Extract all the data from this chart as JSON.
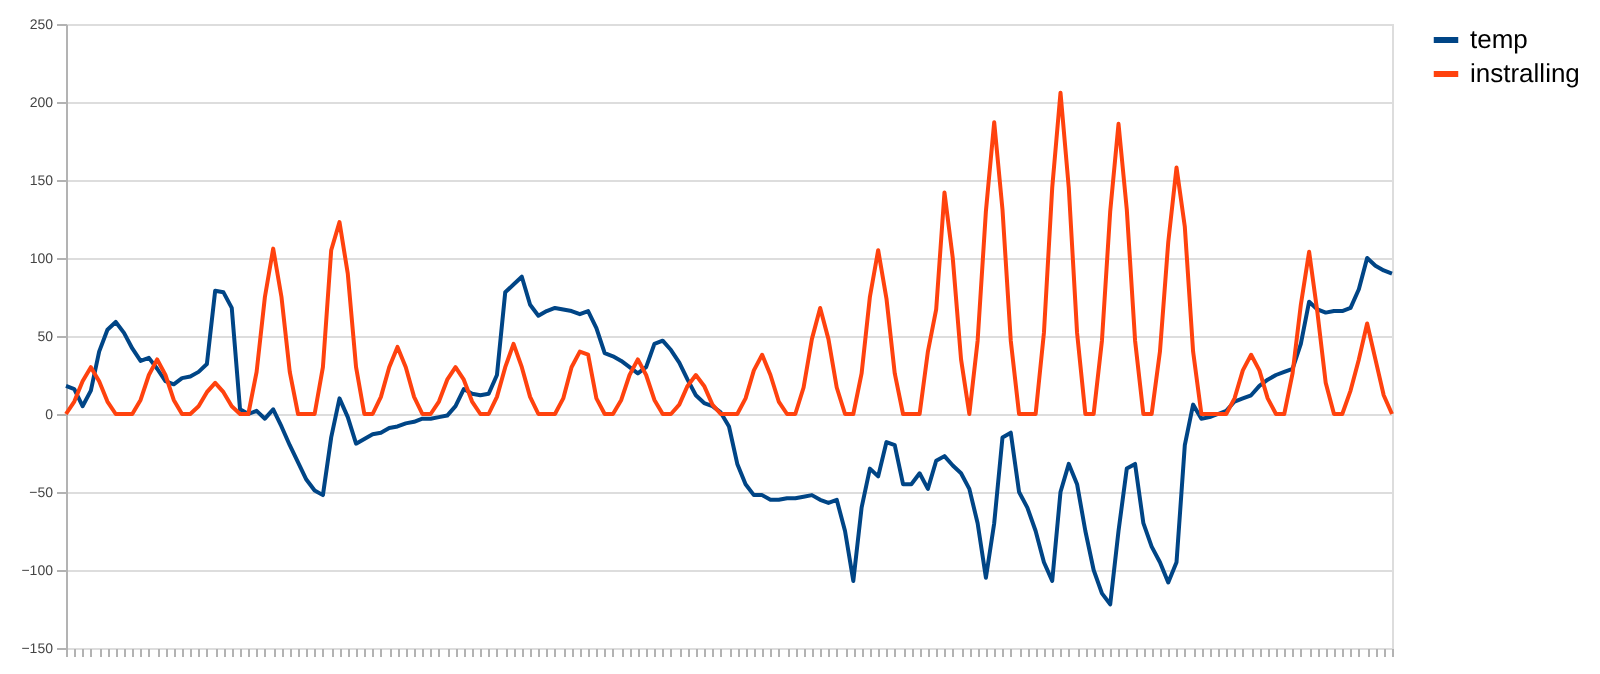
{
  "chart_data": {
    "type": "line",
    "categories": [
      null,
      null,
      null,
      null,
      null,
      null,
      null,
      null,
      null,
      null,
      null,
      null,
      null,
      null,
      null,
      null,
      null,
      null,
      null,
      null,
      null,
      null,
      null,
      null,
      null,
      null,
      null,
      null,
      null,
      null,
      null,
      null,
      null,
      null,
      null,
      null,
      null,
      null,
      null,
      null,
      null,
      null,
      null,
      null,
      null,
      null,
      null,
      null,
      null,
      null,
      null,
      null,
      null,
      null,
      null,
      null,
      null,
      null,
      null,
      null,
      null,
      null,
      null,
      null,
      null,
      null,
      null,
      null,
      null,
      null,
      null,
      null,
      null,
      null,
      null,
      null,
      null,
      null,
      null,
      null,
      null,
      null,
      null,
      null,
      null,
      null,
      null,
      null,
      null,
      null,
      null,
      null,
      null,
      null,
      null,
      null,
      null,
      null,
      null,
      null,
      null,
      null,
      null,
      null,
      null,
      null,
      null,
      null,
      null,
      null,
      null,
      null,
      null,
      null,
      null,
      null,
      null,
      null,
      null,
      null,
      null,
      null,
      null,
      null,
      null,
      null,
      null,
      null,
      null,
      null,
      null,
      null,
      null,
      null,
      null,
      null,
      null,
      null,
      null,
      null,
      null,
      null,
      null,
      null,
      null,
      null,
      null,
      null,
      null,
      null,
      null,
      null,
      null,
      null,
      null,
      null,
      null,
      null,
      null,
      null,
      null
    ],
    "series": [
      {
        "name": "temp",
        "color": "#004586",
        "values": [
          18,
          16,
          5,
          15,
          40,
          54,
          59,
          52,
          42,
          34,
          36,
          29,
          21,
          19,
          23,
          24,
          27,
          32,
          79,
          78,
          68,
          3,
          0,
          2,
          -3,
          3,
          -8,
          -20,
          -31,
          -42,
          -49,
          -52,
          -15,
          10,
          -2,
          -19,
          -16,
          -13,
          -12,
          -9,
          -8,
          -6,
          -5,
          -3,
          -3,
          -2,
          -1,
          5,
          16,
          13,
          12,
          13,
          25,
          78,
          83,
          88,
          70,
          63,
          66,
          68,
          67,
          66,
          64,
          66,
          55,
          39,
          37,
          34,
          30,
          26,
          30,
          45,
          47,
          41,
          33,
          22,
          12,
          7,
          5,
          1,
          -8,
          -32,
          -45,
          -52,
          -52,
          -55,
          -55,
          -54,
          -54,
          -53,
          -52,
          -55,
          -57,
          -55,
          -75,
          -107,
          -60,
          -35,
          -40,
          -18,
          -20,
          -45,
          -45,
          -38,
          -48,
          -30,
          -27,
          -33,
          -38,
          -48,
          -70,
          -105,
          -70,
          -15,
          -12,
          -50,
          -60,
          -75,
          -95,
          -107,
          -50,
          -32,
          -45,
          -75,
          -100,
          -115,
          -122,
          -75,
          -35,
          -32,
          -70,
          -85,
          -95,
          -108,
          -95,
          -20,
          6,
          -3,
          -2,
          0,
          2,
          8,
          10,
          12,
          18,
          22,
          25,
          27,
          29,
          45,
          72,
          67,
          65,
          66,
          66,
          68,
          80,
          100,
          95,
          92,
          90
        ]
      },
      {
        "name": "instralling",
        "color": "#ff420e",
        "values": [
          0,
          8,
          21,
          30,
          21,
          8,
          0,
          0,
          0,
          9,
          25,
          35,
          25,
          9,
          0,
          0,
          5,
          14,
          20,
          14,
          5,
          0,
          0,
          27,
          75,
          106,
          75,
          27,
          0,
          0,
          0,
          30,
          105,
          123,
          90,
          30,
          0,
          0,
          11,
          30,
          43,
          30,
          11,
          0,
          0,
          8,
          22,
          30,
          22,
          8,
          0,
          0,
          11,
          30,
          45,
          30,
          11,
          0,
          0,
          0,
          10,
          30,
          40,
          38,
          10,
          0,
          0,
          9,
          25,
          35,
          25,
          9,
          0,
          0,
          6,
          18,
          25,
          18,
          6,
          0,
          0,
          0,
          10,
          28,
          38,
          25,
          8,
          0,
          0,
          17,
          48,
          68,
          48,
          17,
          0,
          0,
          26,
          75,
          105,
          74,
          26,
          0,
          0,
          0,
          40,
          67,
          142,
          100,
          35,
          0,
          47,
          130,
          187,
          131,
          47,
          0,
          0,
          0,
          52,
          145,
          206,
          145,
          52,
          0,
          0,
          47,
          130,
          186,
          131,
          47,
          0,
          0,
          40,
          110,
          158,
          120,
          40,
          0,
          0,
          0,
          0,
          10,
          28,
          38,
          28,
          10,
          0,
          0,
          26,
          70,
          104,
          65,
          20,
          0,
          0,
          15,
          35,
          58,
          35,
          12,
          0
        ]
      }
    ],
    "ylim": [
      -150,
      250
    ],
    "yticks": [
      -150,
      -100,
      -50,
      0,
      50,
      100,
      150,
      200,
      250
    ],
    "grid": "y",
    "legend": "right",
    "tick_labels": "y"
  }
}
